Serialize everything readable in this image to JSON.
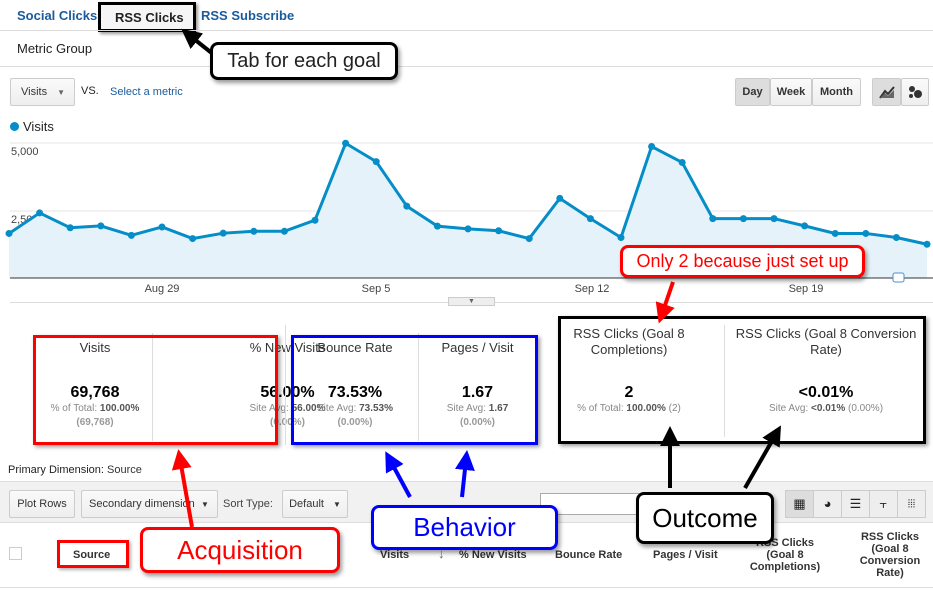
{
  "tabs": [
    {
      "label": "Social Clicks"
    },
    {
      "label": "RSS Clicks",
      "active": true
    },
    {
      "label": "RSS Subscribe"
    }
  ],
  "metric_group": "Metric Group",
  "controls": {
    "metric": "Visits",
    "vs": "VS.",
    "select_metric": "Select a metric",
    "periods": [
      "Day",
      "Week",
      "Month"
    ],
    "active_period": "Day"
  },
  "chart_data": {
    "type": "area",
    "legend": "Visits",
    "y_ticks": [
      "5,000",
      "2,500"
    ],
    "ylim": [
      0,
      5600
    ],
    "x_ticks": [
      "Aug 29",
      "Sep 5",
      "Sep 12",
      "Sep 19"
    ],
    "x": [
      "Aug 24",
      "Aug 25",
      "Aug 26",
      "Aug 27",
      "Aug 28",
      "Aug 29",
      "Aug 30",
      "Aug 31",
      "Sep 1",
      "Sep 2",
      "Sep 3",
      "Sep 4",
      "Sep 5",
      "Sep 6",
      "Sep 7",
      "Sep 8",
      "Sep 9",
      "Sep 10",
      "Sep 11",
      "Sep 12",
      "Sep 13",
      "Sep 14",
      "Sep 15",
      "Sep 16",
      "Sep 17",
      "Sep 18",
      "Sep 19",
      "Sep 20",
      "Sep 21",
      "Sep 22",
      "Sep 23"
    ],
    "values": [
      1650,
      2410,
      1860,
      1930,
      1580,
      1890,
      1460,
      1660,
      1730,
      1730,
      2140,
      4990,
      4310,
      2660,
      1920,
      1820,
      1750,
      1460,
      2950,
      2200,
      1500,
      4870,
      4280,
      2200,
      2200,
      2200,
      1930,
      1650,
      1650,
      1500,
      1250
    ],
    "color": "#058dc7"
  },
  "scorecards": [
    {
      "title": "Visits",
      "value": "69,768",
      "sub_label": "% of Total:",
      "sub_value": "100.00%",
      "sub2": "(69,768)"
    },
    {
      "title": "% New Visits",
      "value": "56.00%",
      "sub_label": "Site Avg:",
      "sub_value": "56.00%",
      "sub2": "(0.00%)"
    },
    {
      "title": "Bounce Rate",
      "value": "73.53%",
      "sub_label": "Site Avg:",
      "sub_value": "73.53%",
      "sub2": "(0.00%)"
    },
    {
      "title": "Pages / Visit",
      "value": "1.67",
      "sub_label": "Site Avg:",
      "sub_value": "1.67",
      "sub2": "(0.00%)"
    },
    {
      "title": "RSS Clicks (Goal 8 Completions)",
      "value": "2",
      "sub_label": "% of Total:",
      "sub_value": "100.00%",
      "sub2": "(2)"
    },
    {
      "title": "RSS Clicks (Goal 8 Conversion Rate)",
      "value": "<0.01%",
      "sub_label": "Site Avg:",
      "sub_value": "<0.01%",
      "sub2": "(0.00%)"
    }
  ],
  "primary_dimension": {
    "label": "Primary Dimension:",
    "value": "Source"
  },
  "toolbar": {
    "plot_rows": "Plot Rows",
    "secondary": "Secondary dimension",
    "sort_label": "Sort Type:",
    "sort_value": "Default"
  },
  "table_headers": [
    "Source",
    "Visits",
    "% New Visits",
    "Bounce Rate",
    "Pages / Visit",
    "RSS Clicks (Goal 8 Completions)",
    "RSS Clicks (Goal 8 Conversion Rate)"
  ],
  "annotations": {
    "tab": "Tab for each goal",
    "only2": "Only 2 because just set up",
    "acquisition": "Acquisition",
    "behavior": "Behavior",
    "outcome": "Outcome"
  },
  "annotation_colors": {
    "acquisition": "#ff0000",
    "behavior": "#0000ff",
    "outcome": "#000000"
  }
}
